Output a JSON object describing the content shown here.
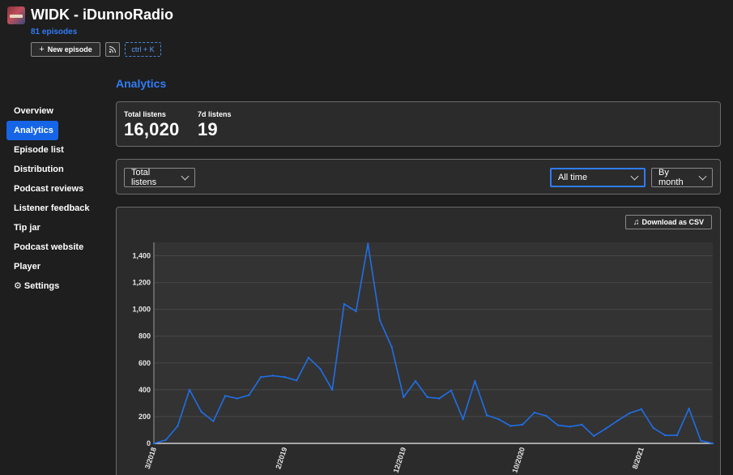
{
  "header": {
    "title": "WIDK - iDunnoRadio",
    "episode_count": "81 episodes",
    "new_episode_label": "New episode",
    "shortcut_label": "ctrl + K"
  },
  "section_title": "Analytics",
  "nav": {
    "items": [
      {
        "label": "Overview",
        "active": false
      },
      {
        "label": "Analytics",
        "active": true
      },
      {
        "label": "Episode list",
        "active": false
      },
      {
        "label": "Distribution",
        "active": false
      },
      {
        "label": "Podcast reviews",
        "active": false
      },
      {
        "label": "Listener feedback",
        "active": false
      },
      {
        "label": "Tip jar",
        "active": false
      },
      {
        "label": "Podcast website",
        "active": false
      },
      {
        "label": "Player",
        "active": false
      },
      {
        "label": "Settings",
        "active": false,
        "icon": "gear-icon"
      }
    ]
  },
  "stats": {
    "total_label": "Total listens",
    "total_value": "16,020",
    "week_label": "7d listens",
    "week_value": "19"
  },
  "filters": {
    "metric": "Total listens",
    "range": "All time",
    "granularity": "By month"
  },
  "download_label": "Download as CSV",
  "colors": {
    "accent": "#2f7cf6",
    "line": "#1f6fe8",
    "background": "#1e1e1e",
    "panel": "#2b2b2b"
  },
  "chart_data": {
    "type": "line",
    "title": "",
    "xlabel": "",
    "ylabel": "",
    "ylim": [
      0,
      1500
    ],
    "yticks": [
      "0",
      "200",
      "400",
      "600",
      "800",
      "1,000",
      "1,200",
      "1,400"
    ],
    "xtick_labels": [
      {
        "label": "3/2018",
        "index": 0
      },
      {
        "label": "2/2019",
        "index": 11
      },
      {
        "label": "12/2019",
        "index": 21
      },
      {
        "label": "10/2020",
        "index": 31
      },
      {
        "label": "8/2021",
        "index": 41
      }
    ],
    "x": [
      "3/2018",
      "4/2018",
      "5/2018",
      "6/2018",
      "7/2018",
      "8/2018",
      "9/2018",
      "10/2018",
      "11/2018",
      "12/2018",
      "1/2019",
      "2/2019",
      "3/2019",
      "4/2019",
      "5/2019",
      "6/2019",
      "7/2019",
      "8/2019",
      "9/2019",
      "10/2019",
      "11/2019",
      "12/2019",
      "1/2020",
      "2/2020",
      "3/2020",
      "4/2020",
      "5/2020",
      "6/2020",
      "7/2020",
      "8/2020",
      "9/2020",
      "10/2020",
      "11/2020",
      "12/2020",
      "1/2021",
      "2/2021",
      "3/2021",
      "4/2021",
      "5/2021",
      "6/2021",
      "7/2021",
      "8/2021",
      "9/2021",
      "10/2021",
      "11/2021",
      "12/2021",
      "1/2022",
      "2/2022"
    ],
    "series": [
      {
        "values": [
          0,
          25,
          130,
          400,
          235,
          165,
          355,
          335,
          360,
          495,
          505,
          495,
          470,
          640,
          555,
          400,
          1040,
          985,
          1490,
          920,
          720,
          345,
          465,
          345,
          335,
          395,
          180,
          465,
          210,
          180,
          130,
          140,
          230,
          205,
          135,
          125,
          140,
          55,
          110,
          170,
          225,
          255,
          115,
          60,
          60,
          260,
          20,
          0
        ]
      }
    ]
  }
}
